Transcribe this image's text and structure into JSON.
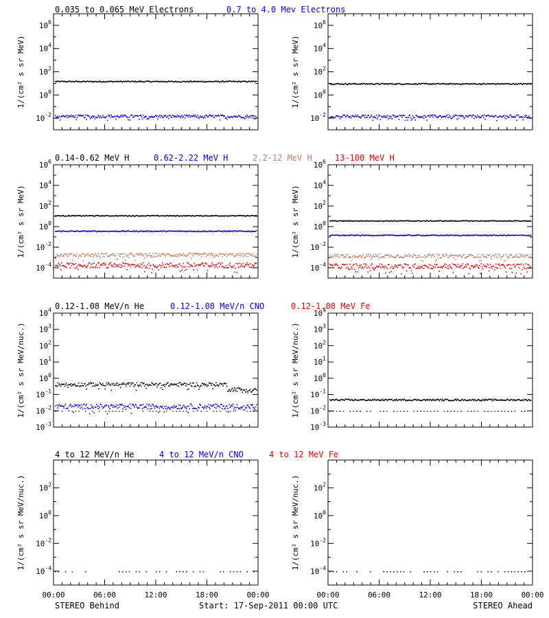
{
  "colors": {
    "black": "#000000",
    "blue": "#0000d8",
    "tan": "#c08060",
    "red": "#e00000"
  },
  "headers": [
    [
      {
        "text": "0.035 to 0.065 MeV Electrons",
        "color": "black"
      },
      {
        "text": "0.7 to 4.0 Mev Electrons",
        "color": "blue"
      }
    ],
    [
      {
        "text": "0.14-0.62 MeV H",
        "color": "black"
      },
      {
        "text": "0.62-2.22 MeV H",
        "color": "blue"
      },
      {
        "text": "2.2-12 MeV H",
        "color": "tan"
      },
      {
        "text": "13-100 MeV H",
        "color": "red"
      }
    ],
    [
      {
        "text": "0.12-1.08 MeV/n He",
        "color": "black"
      },
      {
        "text": "0.12-1.08 MeV/n CNO",
        "color": "blue"
      },
      {
        "text": "0.12-1.08 MeV Fe",
        "color": "red"
      }
    ],
    [
      {
        "text": "4 to 12 MeV/n He",
        "color": "black"
      },
      {
        "text": "4 to 12 MeV/n CNO",
        "color": "blue"
      },
      {
        "text": "4 to 12 MeV Fe",
        "color": "red"
      }
    ]
  ],
  "footer": {
    "left": "STEREO Behind",
    "center": "Start: 17-Sep-2011 00:00 UTC",
    "right": "STEREO Ahead"
  },
  "x_ticks": [
    "00:00",
    "06:00",
    "12:00",
    "18:00",
    "00:00"
  ],
  "chart_data": [
    {
      "id": "behind-electrons",
      "type": "scatter",
      "ylabel": "1/(cm² s sr MeV)",
      "yscale": "log",
      "ylim": [
        -3,
        7
      ],
      "yticks": [
        -2,
        0,
        2,
        4,
        6
      ],
      "series": [
        {
          "name": "0.035 to 0.065 MeV Electrons",
          "color": "black",
          "level": 1.2,
          "spread": 0.05
        },
        {
          "name": "0.7 to 4.0 Mev Electrons",
          "color": "blue",
          "level": -1.8,
          "spread": 0.12
        }
      ]
    },
    {
      "id": "ahead-electrons",
      "type": "scatter",
      "ylabel": "1/(cm² s sr MeV)",
      "yscale": "log",
      "ylim": [
        -3,
        7
      ],
      "yticks": [
        -2,
        0,
        2,
        4,
        6
      ],
      "series": [
        {
          "name": "0.035 to 0.065 MeV Electrons",
          "color": "black",
          "level": 1.0,
          "spread": 0.05
        },
        {
          "name": "0.7 to 4.0 Mev Electrons",
          "color": "blue",
          "level": -1.8,
          "spread": 0.12
        }
      ]
    },
    {
      "id": "behind-protons",
      "type": "scatter",
      "ylabel": "1/(cm² s sr MeV)",
      "yscale": "log",
      "ylim": [
        -5,
        6
      ],
      "yticks": [
        -4,
        -2,
        0,
        2,
        4,
        6
      ],
      "series": [
        {
          "name": "0.14-0.62 MeV H",
          "color": "black",
          "level": 1.1,
          "spread": 0.04
        },
        {
          "name": "0.62-2.22 MeV H",
          "color": "blue",
          "level": -0.4,
          "spread": 0.05
        },
        {
          "name": "2.2-12 MeV H",
          "color": "tan",
          "level": -2.7,
          "spread": 0.18
        },
        {
          "name": "13-100 MeV H",
          "color": "red",
          "level": -3.7,
          "spread": 0.25
        }
      ]
    },
    {
      "id": "ahead-protons",
      "type": "scatter",
      "ylabel": "1/(cm² s sr MeV)",
      "yscale": "log",
      "ylim": [
        -5,
        6
      ],
      "yticks": [
        -4,
        -2,
        0,
        2,
        4,
        6
      ],
      "series": [
        {
          "name": "0.14-0.62 MeV H",
          "color": "black",
          "level": 0.6,
          "spread": 0.04
        },
        {
          "name": "0.62-2.22 MeV H",
          "color": "blue",
          "level": -0.8,
          "spread": 0.05
        },
        {
          "name": "2.2-12 MeV H",
          "color": "tan",
          "level": -2.8,
          "spread": 0.18
        },
        {
          "name": "13-100 MeV H",
          "color": "red",
          "level": -3.8,
          "spread": 0.25
        }
      ]
    },
    {
      "id": "behind-heavy-low",
      "type": "scatter",
      "ylabel": "1/(cm² s sr MeV/nuc.)",
      "yscale": "log",
      "ylim": [
        -3,
        4
      ],
      "yticks": [
        -3,
        -2,
        -1,
        0,
        1,
        2,
        3,
        4
      ],
      "series": [
        {
          "name": "0.12-1.08 MeV/n He",
          "color": "black",
          "level": -0.35,
          "spread": 0.12
        },
        {
          "name": "0.12-1.08 MeV/n CNO",
          "color": "blue",
          "level": -1.7,
          "spread": 0.15
        },
        {
          "name": "0.12-1.08 MeV Fe",
          "color": "red",
          "level": -2.0,
          "spread": 0.0
        }
      ]
    },
    {
      "id": "ahead-heavy-low",
      "type": "scatter",
      "ylabel": "1/(cm² s sr MeV/nuc.)",
      "yscale": "log",
      "ylim": [
        -3,
        4
      ],
      "yticks": [
        -3,
        -2,
        -1,
        0,
        1,
        2,
        3,
        4
      ],
      "series": [
        {
          "name": "0.12-1.08 MeV/n He",
          "color": "black",
          "level": -1.3,
          "spread": 0.05
        },
        {
          "name": "0.12-1.08 MeV/n CNO",
          "color": "blue",
          "level": -2.0,
          "spread": 0.0
        },
        {
          "name": "0.12-1.08 MeV Fe",
          "color": "red",
          "level": -2.0,
          "spread": 0.0
        }
      ]
    },
    {
      "id": "behind-heavy-high",
      "type": "scatter",
      "ylabel": "1/(cm² s sr MeV/nuc.)",
      "yscale": "log",
      "ylim": [
        -5,
        4
      ],
      "yticks": [
        -4,
        -2,
        0,
        2
      ],
      "series": [
        {
          "name": "4 to 12 MeV/n He",
          "color": "black",
          "level": -4.0,
          "spread": 0.0
        }
      ]
    },
    {
      "id": "ahead-heavy-high",
      "type": "scatter",
      "ylabel": "1/(cm² s sr MeV/nuc.)",
      "yscale": "log",
      "ylim": [
        -5,
        4
      ],
      "yticks": [
        -4,
        -2,
        0,
        2
      ],
      "series": [
        {
          "name": "4 to 12 MeV/n He",
          "color": "black",
          "level": -4.0,
          "spread": 0.0
        }
      ]
    }
  ]
}
